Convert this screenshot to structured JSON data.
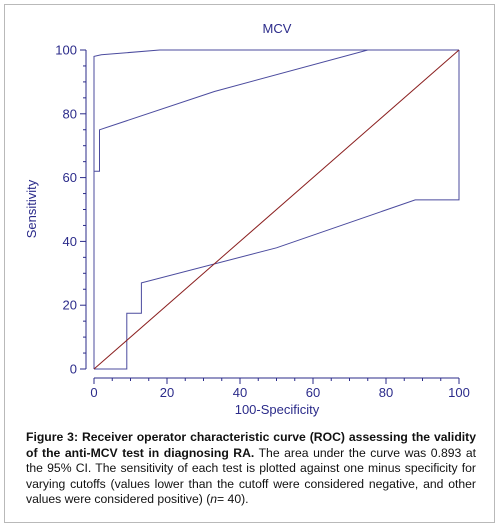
{
  "chart_data": {
    "type": "line",
    "title": "MCV",
    "xlabel": "100-Specificity",
    "ylabel": "Sensitivity",
    "xlim": [
      0,
      100
    ],
    "ylim": [
      0,
      100
    ],
    "xticks": [
      0,
      20,
      40,
      60,
      80,
      100
    ],
    "yticks": [
      0,
      20,
      40,
      60,
      80,
      100
    ],
    "series": [
      {
        "role": "upper-confidence-bound",
        "color": "#4b4b9e",
        "points": [
          [
            0,
            0
          ],
          [
            0,
            98
          ],
          [
            2,
            98.5
          ],
          [
            18,
            100
          ],
          [
            75,
            100
          ],
          [
            100,
            100
          ]
        ]
      },
      {
        "role": "roc-curve",
        "color": "#4b4b9e",
        "points": [
          [
            0,
            0
          ],
          [
            0,
            62
          ],
          [
            1,
            62
          ],
          [
            1.5,
            62
          ],
          [
            1.5,
            75
          ],
          [
            33,
            87
          ],
          [
            75,
            100
          ],
          [
            100,
            100
          ]
        ]
      },
      {
        "role": "lower-confidence-bound",
        "color": "#4b4b9e",
        "points": [
          [
            0,
            0
          ],
          [
            9,
            0
          ],
          [
            9,
            17.5
          ],
          [
            13,
            17.5
          ],
          [
            13,
            27
          ],
          [
            50,
            38
          ],
          [
            88,
            53
          ],
          [
            100,
            53
          ],
          [
            100,
            100
          ]
        ]
      },
      {
        "role": "chance-diagonal",
        "color": "#8b2020",
        "points": [
          [
            0,
            0
          ],
          [
            100,
            100
          ]
        ]
      }
    ]
  },
  "caption": {
    "bold": "Figure 3: Receiver operator characteristic curve (ROC) assessing the validity of the anti-MCV test in diagnosing RA.",
    "text": " The area under the curve was 0.893 at the 95% CI. The sensitivity of each test is plotted against one minus specificity for varying cutoffs (values lower than the cutoff were considered negative, and other values were considered positive) (",
    "n_label": "n",
    "n_value": "= 40)."
  }
}
